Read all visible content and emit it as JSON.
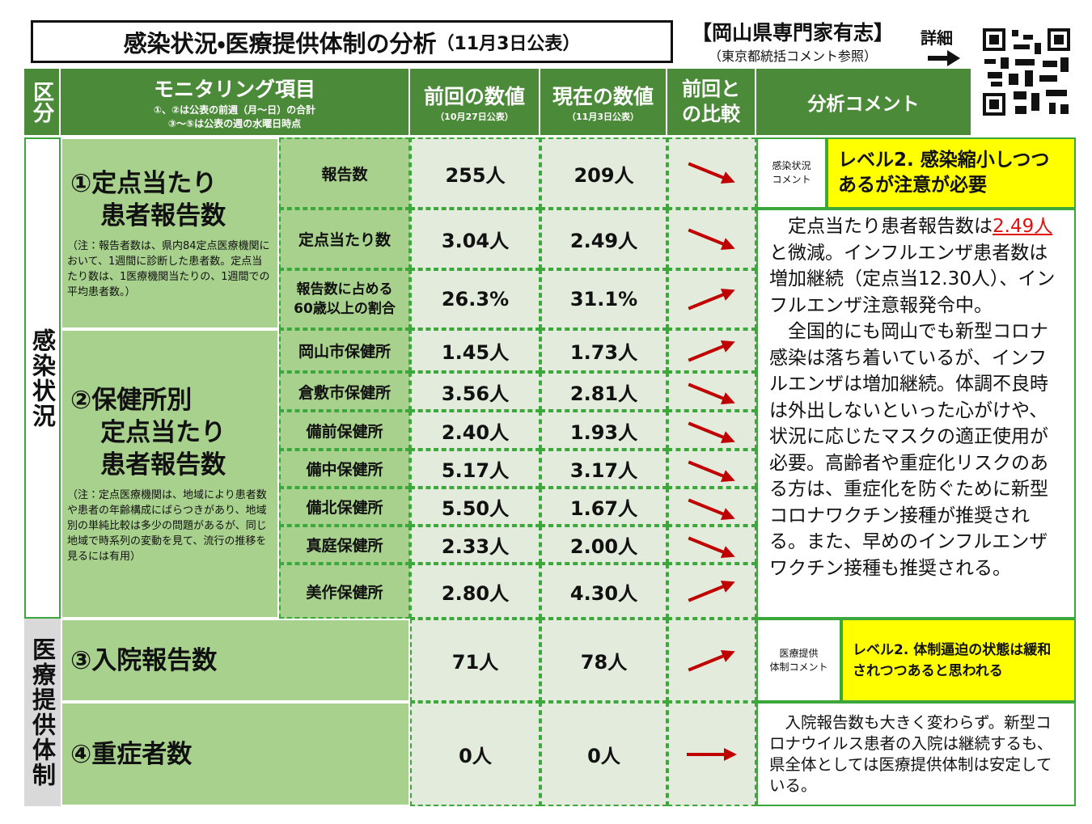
{
  "header": {
    "title": "感染状況・医療提供体制の分析",
    "date": "（11月3日公表）",
    "org": "【岡山県専門家有志】",
    "org_note": "（東京都統括コメント参照）",
    "detail": "詳細"
  },
  "table": {
    "columns": {
      "category": "区分",
      "item": "モニタリング項目",
      "item_note": [
        "①、②は公表の前週（月～日）の合計",
        "③～⑤は公表の週の水曜日時点"
      ],
      "previous": "前回の数値",
      "previous_date": "（10月27日公表）",
      "current": "現在の数値",
      "current_date": "（11月3日公表）",
      "change": [
        "前回と",
        "の比較"
      ],
      "comment": "分析コメント"
    },
    "sections": [
      {
        "category": "感染状況",
        "comment_label": [
          "感染状況",
          "コメント"
        ],
        "level": "レベル2. 感染縮小しつつあるが注意が必要",
        "comment": [
          [
            "定点当たり患者報告数は",
            "2.49人",
            "と微減。インフルエンザ患者数は増加継続（定点当12.30人）、インフルエンザ注意報発令中。"
          ],
          [
            "全国的にも岡山でも新型コロナ感染は落ち着いているが、インフルエンザは増加継続。体調不良時は外出しないといった心がけや、状況に応じたマスクの適正使用が必要。高齢者や重症化リスクのある方は、重症化を防ぐために新型コロナワクチン接種が推奨される。また、早めのインフルエンザワクチン接種も推奨される。"
          ]
        ],
        "groups": [
          {
            "label": [
              "①定点当たり",
              "患者報告数"
            ],
            "note": "（注：報告者数は、県内84定点医療機関において、1週間に診断した患者数。定点当たり数は、1医療機関当たりの、1週間での平均患者数。）",
            "rows": [
              {
                "item": "報告数",
                "previous": "255人",
                "current": "209人"
              },
              {
                "item": "定点当たり数",
                "previous": "3.04人",
                "current": "2.49人"
              },
              {
                "item": "報告数に占める60歳以上の割合",
                "previous": "26.3%",
                "current": "31.1%"
              }
            ]
          },
          {
            "label": [
              "②保健所別",
              "定点当たり",
              "患者報告数"
            ],
            "note": "（注：定点医療機関は、地域により患者数や患者の年齢構成にばらつきがあり、地域別の単純比較は多少の問題があるが、同じ地域で時系列の変動を見て、流行の推移を見るには有用）",
            "rows": [
              {
                "item": "岡山市保健所",
                "previous": "1.45人",
                "current": "1.73人"
              },
              {
                "item": "倉敷市保健所",
                "previous": "3.56人",
                "current": "2.81人"
              },
              {
                "item": "備前保健所",
                "previous": "2.40人",
                "current": "1.93人"
              },
              {
                "item": "備中保健所",
                "previous": "5.17人",
                "current": "3.17人"
              },
              {
                "item": "備北保健所",
                "previous": "5.50人",
                "current": "1.67人"
              },
              {
                "item": "真庭保健所",
                "previous": "2.33人",
                "current": "2.00人"
              },
              {
                "item": "美作保健所",
                "previous": "2.80人",
                "current": "4.30人"
              }
            ]
          }
        ]
      },
      {
        "category": "医療提供体制",
        "comment_label": [
          "医療提供",
          "体制コメント"
        ],
        "level": "レベル2. 体制逼迫の状態は緩和されつつあると思われる",
        "comment": [
          [
            "入院報告数も大きく変わらず。新型コロナウイルス患者の入院は継続するも、県全体としては医療提供体制は安定している。"
          ]
        ],
        "groups": [
          {
            "label": [
              "③入院報告数"
            ],
            "rows": [
              {
                "previous": "71人",
                "current": "78人"
              }
            ]
          },
          {
            "label": [
              "④重症者数"
            ],
            "rows": [
              {
                "previous": "0人",
                "current": "0人"
              }
            ]
          }
        ]
      }
    ]
  }
}
